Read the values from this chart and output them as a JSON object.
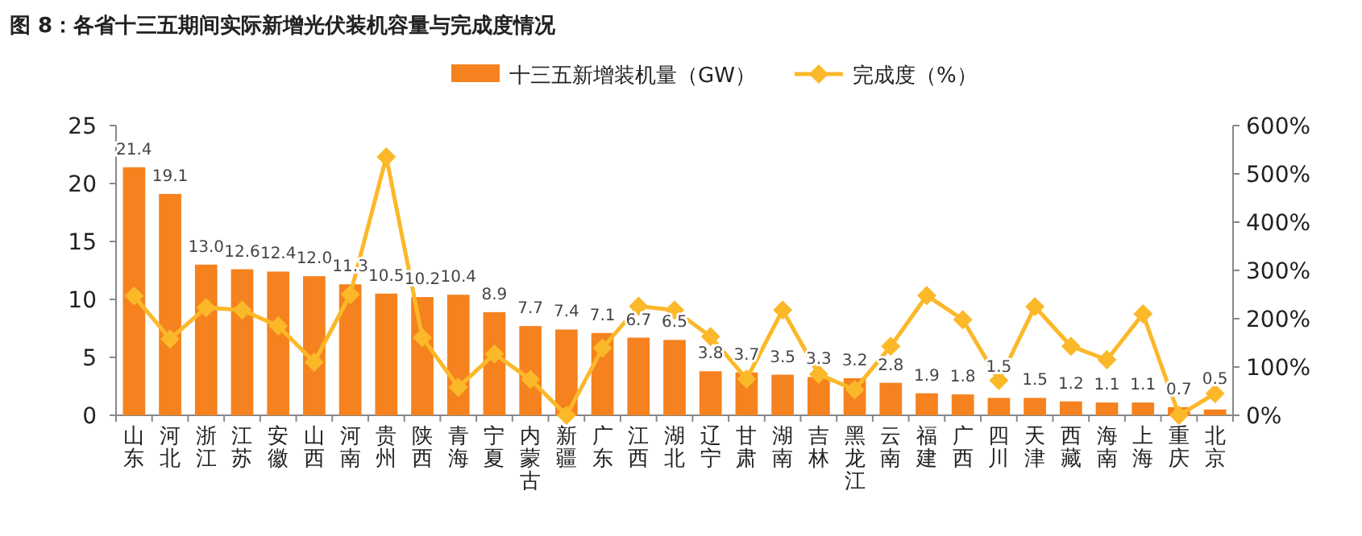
{
  "chart_data": {
    "type": "bar",
    "title": "图 8：各省十三五期间实际新增光伏装机容量与完成度情况",
    "categories": [
      "山东",
      "河北",
      "浙江",
      "江苏",
      "安徽",
      "山西",
      "河南",
      "贵州",
      "陕西",
      "青海",
      "宁夏",
      "内蒙古",
      "新疆",
      "广东",
      "江西",
      "湖北",
      "辽宁",
      "甘肃",
      "湖南",
      "吉林",
      "黑龙江",
      "云南",
      "福建",
      "广西",
      "四川",
      "天津",
      "西藏",
      "海南",
      "上海",
      "重庆",
      "北京"
    ],
    "series": [
      {
        "name": "十三五新增装机量（GW）",
        "color": "#f5821f",
        "values": [
          21.4,
          19.1,
          13.0,
          12.6,
          12.4,
          12.0,
          11.3,
          10.5,
          10.2,
          10.4,
          8.9,
          7.7,
          7.4,
          7.1,
          6.7,
          6.5,
          3.8,
          3.7,
          3.5,
          3.3,
          3.2,
          2.8,
          1.9,
          1.8,
          1.5,
          1.5,
          1.2,
          1.1,
          1.1,
          0.7,
          0.5
        ],
        "value_labels": [
          "21.4",
          "19.1",
          "13.0",
          "12.6",
          "12.4",
          "12.0",
          "11.3",
          "10.5",
          "10.2",
          "10.4",
          "8.9",
          "7.7",
          "7.4",
          "7.1",
          "6.7",
          "6.5",
          "3.8",
          "3.7",
          "3.5",
          "3.3",
          "3.2",
          "2.8",
          "1.9",
          "1.8",
          "1.5",
          "1.5",
          "1.2",
          "1.1",
          "1.1",
          "0.7",
          "0.5"
        ]
      },
      {
        "name": "完成度（%）",
        "type": "line",
        "axis": "y2",
        "color": "#fbb829",
        "marker": "diamond",
        "values": [
          247,
          158,
          223,
          218,
          185,
          110,
          250,
          535,
          161,
          58,
          127,
          74,
          0,
          139,
          226,
          218,
          163,
          75,
          218,
          85,
          53,
          143,
          248,
          198,
          72,
          225,
          143,
          115,
          210,
          0,
          45
        ]
      }
    ],
    "ylim": [
      0,
      25
    ],
    "yticks": [
      0,
      5,
      10,
      15,
      20,
      25
    ],
    "y2lim": [
      0,
      600
    ],
    "y2ticks": [
      {
        "value": 0,
        "label": "0%"
      },
      {
        "value": 100,
        "label": "100%"
      },
      {
        "value": 200,
        "label": "200%"
      },
      {
        "value": 300,
        "label": "300%"
      },
      {
        "value": 400,
        "label": "400%"
      },
      {
        "value": 500,
        "label": "500%"
      },
      {
        "value": 600,
        "label": "600%"
      }
    ],
    "legend": "top",
    "grid": false
  }
}
